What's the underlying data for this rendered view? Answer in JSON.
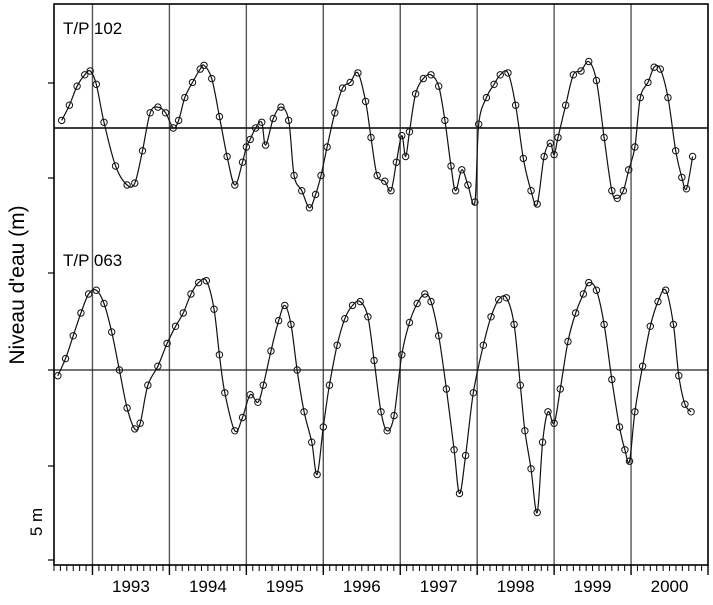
{
  "chart_data": {
    "type": "line",
    "ylabel": "Niveau d'eau (m)",
    "scale_label": "5 m",
    "x_ticks": [
      "1993",
      "1994",
      "1995",
      "1996",
      "1997",
      "1998",
      "1999",
      "2000"
    ],
    "xlim": [
      1992.5,
      2001.0
    ],
    "y_scale_m": 5,
    "grid": "vertical lines at year boundaries; one horizontal reference line per series",
    "series": [
      {
        "name": "T/P 102",
        "marker": "open-circle",
        "points": [
          [
            1992.6,
            0.4
          ],
          [
            1992.7,
            1.2
          ],
          [
            1992.8,
            2.2
          ],
          [
            1992.9,
            2.8
          ],
          [
            1992.97,
            3.0
          ],
          [
            1993.05,
            2.3
          ],
          [
            1993.15,
            0.3
          ],
          [
            1993.3,
            -2.0
          ],
          [
            1993.45,
            -3.0
          ],
          [
            1993.55,
            -2.9
          ],
          [
            1993.65,
            -1.2
          ],
          [
            1993.75,
            0.8
          ],
          [
            1993.85,
            1.1
          ],
          [
            1993.95,
            0.8
          ],
          [
            1994.05,
            0.0
          ],
          [
            1994.12,
            0.4
          ],
          [
            1994.2,
            1.6
          ],
          [
            1994.3,
            2.4
          ],
          [
            1994.4,
            3.1
          ],
          [
            1994.45,
            3.3
          ],
          [
            1994.55,
            2.6
          ],
          [
            1994.65,
            0.6
          ],
          [
            1994.75,
            -1.5
          ],
          [
            1994.85,
            -3.0
          ],
          [
            1994.95,
            -1.8
          ],
          [
            1995.0,
            -1.0
          ],
          [
            1995.05,
            -0.6
          ],
          [
            1995.12,
            0.0
          ],
          [
            1995.2,
            0.3
          ],
          [
            1995.25,
            -0.9
          ],
          [
            1995.35,
            0.5
          ],
          [
            1995.45,
            1.1
          ],
          [
            1995.55,
            0.4
          ],
          [
            1995.62,
            -2.5
          ],
          [
            1995.72,
            -3.3
          ],
          [
            1995.82,
            -4.2
          ],
          [
            1995.9,
            -3.5
          ],
          [
            1995.97,
            -2.5
          ],
          [
            1996.05,
            -1.0
          ],
          [
            1996.15,
            0.8
          ],
          [
            1996.25,
            2.1
          ],
          [
            1996.35,
            2.4
          ],
          [
            1996.45,
            2.9
          ],
          [
            1996.55,
            1.4
          ],
          [
            1996.62,
            -0.5
          ],
          [
            1996.7,
            -2.5
          ],
          [
            1996.8,
            -2.8
          ],
          [
            1996.88,
            -3.3
          ],
          [
            1996.95,
            -1.8
          ],
          [
            1997.02,
            -0.4
          ],
          [
            1997.07,
            -1.5
          ],
          [
            1997.12,
            -0.2
          ],
          [
            1997.2,
            1.8
          ],
          [
            1997.3,
            2.6
          ],
          [
            1997.4,
            2.8
          ],
          [
            1997.5,
            2.2
          ],
          [
            1997.58,
            0.4
          ],
          [
            1997.66,
            -2.0
          ],
          [
            1997.72,
            -3.3
          ],
          [
            1997.8,
            -2.2
          ],
          [
            1997.88,
            -3.0
          ],
          [
            1997.97,
            -3.9
          ],
          [
            1998.02,
            0.2
          ],
          [
            1998.12,
            1.6
          ],
          [
            1998.22,
            2.3
          ],
          [
            1998.3,
            2.8
          ],
          [
            1998.4,
            2.9
          ],
          [
            1998.5,
            1.2
          ],
          [
            1998.6,
            -1.6
          ],
          [
            1998.7,
            -3.3
          ],
          [
            1998.78,
            -4.0
          ],
          [
            1998.87,
            -1.5
          ],
          [
            1998.95,
            -0.8
          ],
          [
            1999.0,
            -1.4
          ],
          [
            1999.05,
            -0.5
          ],
          [
            1999.15,
            1.2
          ],
          [
            1999.25,
            2.8
          ],
          [
            1999.35,
            3.0
          ],
          [
            1999.45,
            3.5
          ],
          [
            1999.55,
            2.5
          ],
          [
            1999.65,
            -0.5
          ],
          [
            1999.75,
            -3.3
          ],
          [
            1999.82,
            -3.7
          ],
          [
            1999.9,
            -3.3
          ],
          [
            1999.97,
            -2.2
          ],
          [
            2000.05,
            -1.0
          ],
          [
            2000.12,
            1.6
          ],
          [
            2000.22,
            2.4
          ],
          [
            2000.3,
            3.2
          ],
          [
            2000.38,
            3.1
          ],
          [
            2000.48,
            1.6
          ],
          [
            2000.58,
            -1.2
          ],
          [
            2000.66,
            -2.6
          ],
          [
            2000.72,
            -3.2
          ],
          [
            2000.8,
            -1.5
          ]
        ]
      },
      {
        "name": "T/P 063",
        "marker": "open-circle",
        "points": [
          [
            1992.55,
            -0.3
          ],
          [
            1992.65,
            0.6
          ],
          [
            1992.75,
            1.8
          ],
          [
            1992.85,
            3.0
          ],
          [
            1992.95,
            4.0
          ],
          [
            1993.05,
            4.2
          ],
          [
            1993.15,
            3.5
          ],
          [
            1993.25,
            2.0
          ],
          [
            1993.35,
            0.0
          ],
          [
            1993.45,
            -2.0
          ],
          [
            1993.55,
            -3.1
          ],
          [
            1993.62,
            -2.8
          ],
          [
            1993.72,
            -0.8
          ],
          [
            1993.85,
            0.2
          ],
          [
            1993.97,
            1.4
          ],
          [
            1994.08,
            2.3
          ],
          [
            1994.18,
            3.0
          ],
          [
            1994.28,
            4.0
          ],
          [
            1994.38,
            4.6
          ],
          [
            1994.48,
            4.7
          ],
          [
            1994.58,
            3.2
          ],
          [
            1994.65,
            0.8
          ],
          [
            1994.72,
            -1.2
          ],
          [
            1994.85,
            -3.2
          ],
          [
            1994.95,
            -2.5
          ],
          [
            1995.05,
            -1.3
          ],
          [
            1995.15,
            -1.7
          ],
          [
            1995.22,
            -0.8
          ],
          [
            1995.32,
            1.0
          ],
          [
            1995.42,
            2.6
          ],
          [
            1995.5,
            3.4
          ],
          [
            1995.58,
            2.4
          ],
          [
            1995.66,
            0.0
          ],
          [
            1995.75,
            -2.2
          ],
          [
            1995.85,
            -3.8
          ],
          [
            1995.92,
            -5.5
          ],
          [
            1996.0,
            -3.0
          ],
          [
            1996.08,
            -0.8
          ],
          [
            1996.18,
            1.3
          ],
          [
            1996.28,
            2.7
          ],
          [
            1996.38,
            3.4
          ],
          [
            1996.48,
            3.6
          ],
          [
            1996.58,
            2.8
          ],
          [
            1996.66,
            0.5
          ],
          [
            1996.75,
            -2.2
          ],
          [
            1996.83,
            -3.2
          ],
          [
            1996.92,
            -2.4
          ],
          [
            1997.02,
            0.8
          ],
          [
            1997.12,
            2.5
          ],
          [
            1997.22,
            3.5
          ],
          [
            1997.32,
            4.0
          ],
          [
            1997.4,
            3.6
          ],
          [
            1997.5,
            1.8
          ],
          [
            1997.6,
            -1.0
          ],
          [
            1997.7,
            -4.2
          ],
          [
            1997.77,
            -6.5
          ],
          [
            1997.85,
            -4.5
          ],
          [
            1997.95,
            -1.2
          ],
          [
            1998.08,
            1.3
          ],
          [
            1998.18,
            2.8
          ],
          [
            1998.28,
            3.7
          ],
          [
            1998.38,
            3.8
          ],
          [
            1998.48,
            2.4
          ],
          [
            1998.56,
            -0.8
          ],
          [
            1998.62,
            -3.2
          ],
          [
            1998.7,
            -5.2
          ],
          [
            1998.78,
            -7.5
          ],
          [
            1998.85,
            -3.8
          ],
          [
            1998.92,
            -2.2
          ],
          [
            1999.0,
            -2.8
          ],
          [
            1999.08,
            -1.0
          ],
          [
            1999.18,
            1.5
          ],
          [
            1999.28,
            3.0
          ],
          [
            1999.38,
            4.0
          ],
          [
            1999.45,
            4.6
          ],
          [
            1999.55,
            4.2
          ],
          [
            1999.65,
            2.4
          ],
          [
            1999.75,
            -0.5
          ],
          [
            1999.85,
            -3.0
          ],
          [
            1999.92,
            -4.2
          ],
          [
            1999.98,
            -4.8
          ],
          [
            2000.05,
            -2.2
          ],
          [
            2000.15,
            0.2
          ],
          [
            2000.25,
            2.3
          ],
          [
            2000.35,
            3.6
          ],
          [
            2000.45,
            4.2
          ],
          [
            2000.55,
            2.4
          ],
          [
            2000.62,
            -0.3
          ],
          [
            2000.7,
            -1.8
          ],
          [
            2000.78,
            -2.2
          ]
        ]
      }
    ]
  }
}
